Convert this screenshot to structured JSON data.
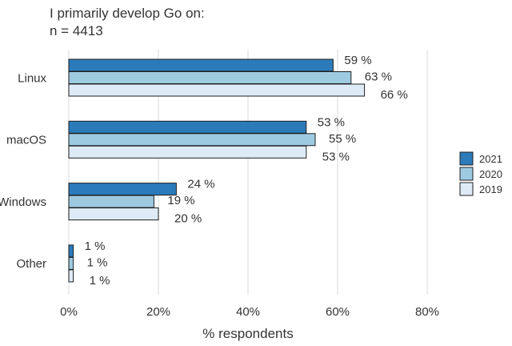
{
  "title": "I primarily develop Go on:",
  "subtitle": "n = 4413",
  "chart_data": {
    "type": "bar",
    "orientation": "horizontal",
    "title": "I primarily develop Go on:",
    "subtitle": "n = 4413",
    "categories": [
      "Linux",
      "macOS",
      "Windows",
      "Other"
    ],
    "series": [
      {
        "name": "2021",
        "values": [
          59,
          53,
          24,
          1
        ],
        "color": "#2b7bba"
      },
      {
        "name": "2020",
        "values": [
          63,
          55,
          19,
          1
        ],
        "color": "#9ecae1"
      },
      {
        "name": "2019",
        "values": [
          66,
          53,
          20,
          1
        ],
        "color": "#deebf7"
      }
    ],
    "xlabel": "% respondents",
    "ylabel": "",
    "xlim": [
      0,
      80
    ],
    "xticks": [
      0,
      20,
      40,
      60,
      80
    ],
    "xtick_labels": [
      "0%",
      "20%",
      "40%",
      "60%",
      "80%"
    ],
    "value_suffix": " %",
    "grid": true,
    "legend_position": "right"
  },
  "colors": {
    "bar_stroke": "#1f1f1f",
    "grid": "#e5e5e5",
    "text": "#333333"
  }
}
